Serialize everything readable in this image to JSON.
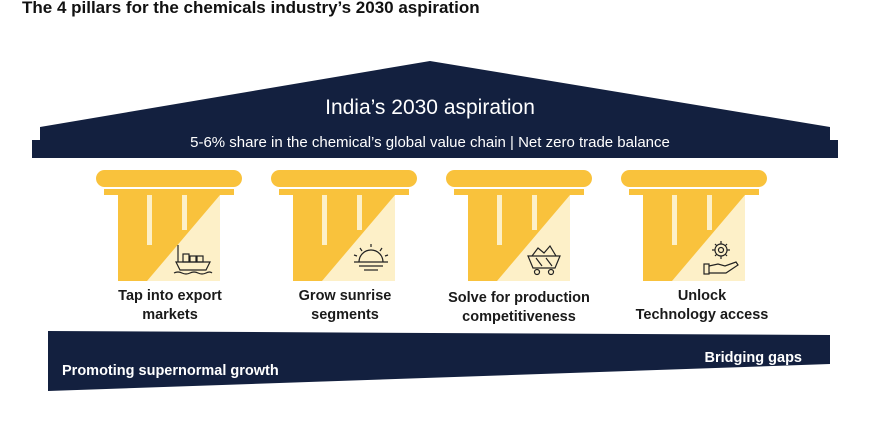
{
  "title": "The 4 pillars for the chemicals industry’s 2030 aspiration",
  "roof": {
    "title": "India’s 2030 aspiration",
    "subtitle": "5-6% share in the chemical’s global value chain | Net zero trade balance"
  },
  "pillars": [
    {
      "icon": "cargo-ship-icon",
      "line1": "Tap into export",
      "line2": "markets"
    },
    {
      "icon": "sunrise-icon",
      "line1": "Grow sunrise",
      "line2": "segments"
    },
    {
      "icon": "mine-cart-icon",
      "line1": "Solve for production",
      "line2": "competitiveness"
    },
    {
      "icon": "gear-hand-icon",
      "line1": "Unlock",
      "line2": "Technology access"
    }
  ],
  "base": {
    "left_label": "Promoting supernormal growth",
    "right_label": "Bridging gaps"
  },
  "colors": {
    "navy": "#13203f",
    "gold": "#f9c23c",
    "cream": "#fdf0c8"
  }
}
